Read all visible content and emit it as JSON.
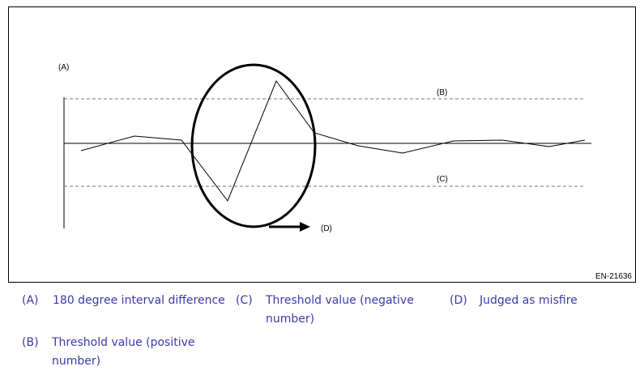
{
  "diagram": {
    "labels": {
      "a": "(A)",
      "b": "(B)",
      "c": "(C)",
      "d": "(D)"
    },
    "code": "EN-21636"
  },
  "legend": [
    {
      "key": "(A)",
      "lines": [
        "180 degree interval difference"
      ]
    },
    {
      "key": "(C)",
      "lines": [
        "Threshold value (negative",
        "number)"
      ]
    },
    {
      "key": "(D)",
      "lines": [
        "Judged as misfire"
      ]
    },
    {
      "key": "(B)",
      "lines": [
        "Threshold value (positive",
        "number)"
      ]
    }
  ]
}
